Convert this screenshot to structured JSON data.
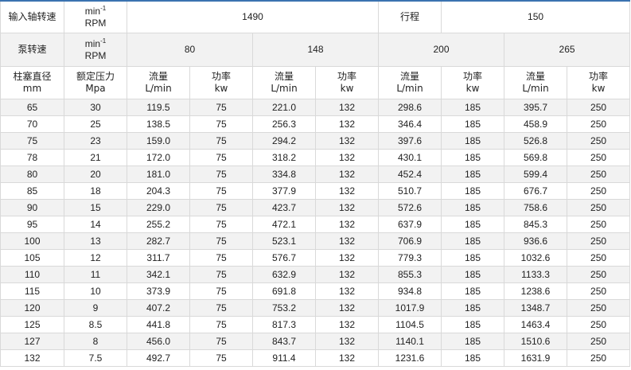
{
  "header": {
    "input_speed_label": "输入轴转速",
    "unit_min": "min",
    "unit_exp": "-1",
    "unit_rpm": "RPM",
    "input_speed_value": "1490",
    "stroke_label": "行程",
    "stroke_value": "150",
    "pump_speed_label": "泵转速",
    "pump_speeds": [
      "80",
      "148",
      "200",
      "265"
    ],
    "plunger_label": "柱塞直径",
    "plunger_unit": "mm",
    "pressure_label": "额定压力",
    "pressure_unit": "Mpa",
    "flow_label": "流量",
    "flow_unit": "L/min",
    "power_label": "功率",
    "power_unit": "kw"
  },
  "rows": [
    [
      "65",
      "30",
      "119.5",
      "75",
      "221.0",
      "132",
      "298.6",
      "185",
      "395.7",
      "250"
    ],
    [
      "70",
      "25",
      "138.5",
      "75",
      "256.3",
      "132",
      "346.4",
      "185",
      "458.9",
      "250"
    ],
    [
      "75",
      "23",
      "159.0",
      "75",
      "294.2",
      "132",
      "397.6",
      "185",
      "526.8",
      "250"
    ],
    [
      "78",
      "21",
      "172.0",
      "75",
      "318.2",
      "132",
      "430.1",
      "185",
      "569.8",
      "250"
    ],
    [
      "80",
      "20",
      "181.0",
      "75",
      "334.8",
      "132",
      "452.4",
      "185",
      "599.4",
      "250"
    ],
    [
      "85",
      "18",
      "204.3",
      "75",
      "377.9",
      "132",
      "510.7",
      "185",
      "676.7",
      "250"
    ],
    [
      "90",
      "15",
      "229.0",
      "75",
      "423.7",
      "132",
      "572.6",
      "185",
      "758.6",
      "250"
    ],
    [
      "95",
      "14",
      "255.2",
      "75",
      "472.1",
      "132",
      "637.9",
      "185",
      "845.3",
      "250"
    ],
    [
      "100",
      "13",
      "282.7",
      "75",
      "523.1",
      "132",
      "706.9",
      "185",
      "936.6",
      "250"
    ],
    [
      "105",
      "12",
      "311.7",
      "75",
      "576.7",
      "132",
      "779.3",
      "185",
      "1032.6",
      "250"
    ],
    [
      "110",
      "11",
      "342.1",
      "75",
      "632.9",
      "132",
      "855.3",
      "185",
      "1133.3",
      "250"
    ],
    [
      "115",
      "10",
      "373.9",
      "75",
      "691.8",
      "132",
      "934.8",
      "185",
      "1238.6",
      "250"
    ],
    [
      "120",
      "9",
      "407.2",
      "75",
      "753.2",
      "132",
      "1017.9",
      "185",
      "1348.7",
      "250"
    ],
    [
      "125",
      "8.5",
      "441.8",
      "75",
      "817.3",
      "132",
      "1104.5",
      "185",
      "1463.4",
      "250"
    ],
    [
      "127",
      "8",
      "456.0",
      "75",
      "843.7",
      "132",
      "1140.1",
      "185",
      "1510.6",
      "250"
    ],
    [
      "132",
      "7.5",
      "492.7",
      "75",
      "911.4",
      "132",
      "1231.6",
      "185",
      "1631.9",
      "250"
    ]
  ],
  "colors": {
    "accent_border": "#3a72b0",
    "stripe": "#f2f2f2",
    "grid": "#d9d9d9"
  }
}
